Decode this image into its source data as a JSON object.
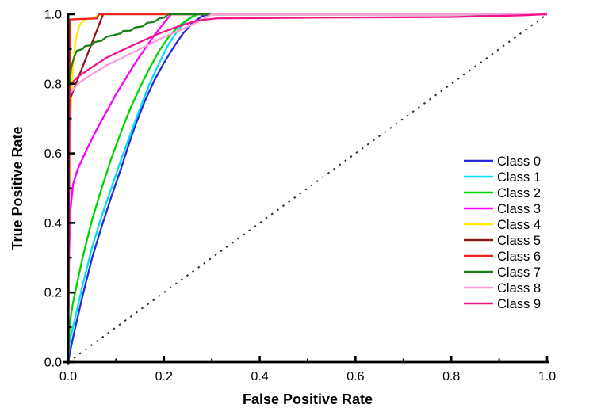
{
  "figure": {
    "background_color": "#ffffff",
    "axis_color": "#000000"
  },
  "chart_data": {
    "type": "line",
    "title": "",
    "xlabel": "False Positive Rate",
    "ylabel": "True Positive Rate",
    "xlim": [
      0.0,
      1.0
    ],
    "ylim": [
      0.0,
      1.0
    ],
    "grid": false,
    "legend_position": "right-middle",
    "x_major_ticks": [
      0.0,
      0.2,
      0.4,
      0.6,
      0.8,
      1.0
    ],
    "y_major_ticks": [
      0.0,
      0.2,
      0.4,
      0.6,
      0.8,
      1.0
    ],
    "x_tick_labels": [
      "0.0",
      "0.2",
      "0.4",
      "0.6",
      "0.8",
      "1.0"
    ],
    "y_tick_labels": [
      "0.0",
      "0.2",
      "0.4",
      "0.6",
      "0.8",
      "1.0"
    ],
    "x_minor_ticks": [
      0.1,
      0.3,
      0.5,
      0.7,
      0.9
    ],
    "y_minor_ticks": [
      0.1,
      0.3,
      0.5,
      0.7,
      0.9
    ],
    "reference_line": {
      "name": "chance-diagonal",
      "style": "dotted",
      "color": "#2e2e2e",
      "points": [
        [
          0.0,
          0.0
        ],
        [
          1.0,
          1.0
        ]
      ]
    },
    "series": [
      {
        "name": "Class 0",
        "color": "#2828d7",
        "points": [
          [
            0,
            0
          ],
          [
            0.004,
            0.03
          ],
          [
            0.01,
            0.07
          ],
          [
            0.03,
            0.19
          ],
          [
            0.05,
            0.3
          ],
          [
            0.07,
            0.39
          ],
          [
            0.09,
            0.475
          ],
          [
            0.11,
            0.555
          ],
          [
            0.13,
            0.64
          ],
          [
            0.14,
            0.68
          ],
          [
            0.16,
            0.75
          ],
          [
            0.18,
            0.81
          ],
          [
            0.2,
            0.86
          ],
          [
            0.22,
            0.905
          ],
          [
            0.24,
            0.945
          ],
          [
            0.26,
            0.975
          ],
          [
            0.28,
            0.995
          ],
          [
            0.295,
            1.0
          ],
          [
            1,
            1
          ]
        ]
      },
      {
        "name": "Class 1",
        "color": "#00e0f0",
        "points": [
          [
            0,
            0
          ],
          [
            0.003,
            0.06
          ],
          [
            0.01,
            0.1
          ],
          [
            0.03,
            0.22
          ],
          [
            0.05,
            0.33
          ],
          [
            0.07,
            0.42
          ],
          [
            0.09,
            0.5
          ],
          [
            0.11,
            0.58
          ],
          [
            0.13,
            0.655
          ],
          [
            0.15,
            0.73
          ],
          [
            0.17,
            0.8
          ],
          [
            0.19,
            0.86
          ],
          [
            0.21,
            0.915
          ],
          [
            0.23,
            0.955
          ],
          [
            0.25,
            0.985
          ],
          [
            0.265,
            1.0
          ],
          [
            1,
            1
          ]
        ]
      },
      {
        "name": "Class 2",
        "color": "#00d500",
        "points": [
          [
            0,
            0
          ],
          [
            0.003,
            0.11
          ],
          [
            0.01,
            0.17
          ],
          [
            0.03,
            0.3
          ],
          [
            0.05,
            0.41
          ],
          [
            0.07,
            0.5
          ],
          [
            0.09,
            0.585
          ],
          [
            0.11,
            0.66
          ],
          [
            0.13,
            0.73
          ],
          [
            0.15,
            0.79
          ],
          [
            0.17,
            0.845
          ],
          [
            0.19,
            0.895
          ],
          [
            0.21,
            0.935
          ],
          [
            0.23,
            0.965
          ],
          [
            0.25,
            0.985
          ],
          [
            0.27,
            1.0
          ],
          [
            1,
            1
          ]
        ]
      },
      {
        "name": "Class 3",
        "color": "#ff00ff",
        "points": [
          [
            0,
            0
          ],
          [
            0.002,
            0.32
          ],
          [
            0.005,
            0.44
          ],
          [
            0.01,
            0.51
          ],
          [
            0.02,
            0.555
          ],
          [
            0.04,
            0.615
          ],
          [
            0.06,
            0.67
          ],
          [
            0.08,
            0.72
          ],
          [
            0.1,
            0.77
          ],
          [
            0.12,
            0.815
          ],
          [
            0.14,
            0.86
          ],
          [
            0.16,
            0.9
          ],
          [
            0.18,
            0.94
          ],
          [
            0.2,
            0.975
          ],
          [
            0.215,
            1.0
          ],
          [
            1,
            1
          ]
        ]
      },
      {
        "name": "Class 4",
        "color": "#ffec00",
        "points": [
          [
            0,
            0
          ],
          [
            0.002,
            0.45
          ],
          [
            0.005,
            0.7
          ],
          [
            0.01,
            0.855
          ],
          [
            0.016,
            0.93
          ],
          [
            0.024,
            0.97
          ],
          [
            0.035,
            0.985
          ],
          [
            0.05,
            0.988
          ],
          [
            0.068,
            1.0
          ],
          [
            1,
            1
          ]
        ]
      },
      {
        "name": "Class 5",
        "color": "#8b1a1a",
        "points": [
          [
            0,
            0
          ],
          [
            0.002,
            0.75
          ],
          [
            0.073,
            1.0
          ],
          [
            1,
            1
          ]
        ]
      },
      {
        "name": "Class 6",
        "color": "#ee2222",
        "points": [
          [
            0,
            0
          ],
          [
            0.004,
            0.985
          ],
          [
            0.06,
            0.988
          ],
          [
            0.064,
            1.0
          ],
          [
            1,
            1
          ]
        ]
      },
      {
        "name": "Class 7",
        "color": "#1e7d1e",
        "points": [
          [
            0,
            0
          ],
          [
            0.002,
            0.78
          ],
          [
            0.006,
            0.845
          ],
          [
            0.012,
            0.875
          ],
          [
            0.018,
            0.895
          ],
          [
            0.03,
            0.9
          ],
          [
            0.035,
            0.908
          ],
          [
            0.05,
            0.912
          ],
          [
            0.055,
            0.92
          ],
          [
            0.07,
            0.924
          ],
          [
            0.08,
            0.935
          ],
          [
            0.095,
            0.94
          ],
          [
            0.11,
            0.945
          ],
          [
            0.115,
            0.952
          ],
          [
            0.13,
            0.953
          ],
          [
            0.14,
            0.962
          ],
          [
            0.155,
            0.965
          ],
          [
            0.165,
            0.975
          ],
          [
            0.18,
            0.978
          ],
          [
            0.19,
            0.988
          ],
          [
            0.2,
            0.99
          ],
          [
            0.21,
            1.0
          ],
          [
            1,
            1
          ]
        ]
      },
      {
        "name": "Class 8",
        "color": "#ff9ae0",
        "points": [
          [
            0,
            0
          ],
          [
            0.003,
            0.77
          ],
          [
            0.02,
            0.8
          ],
          [
            0.05,
            0.828
          ],
          [
            0.08,
            0.853
          ],
          [
            0.11,
            0.873
          ],
          [
            0.15,
            0.9
          ],
          [
            0.19,
            0.928
          ],
          [
            0.23,
            0.952
          ],
          [
            0.27,
            0.977
          ],
          [
            0.3,
            1.0
          ],
          [
            1,
            1
          ]
        ]
      },
      {
        "name": "Class 9",
        "color": "#f0148c",
        "points": [
          [
            0,
            0
          ],
          [
            0.003,
            0.795
          ],
          [
            0.02,
            0.82
          ],
          [
            0.05,
            0.848
          ],
          [
            0.08,
            0.875
          ],
          [
            0.11,
            0.895
          ],
          [
            0.15,
            0.92
          ],
          [
            0.19,
            0.945
          ],
          [
            0.23,
            0.965
          ],
          [
            0.27,
            0.982
          ],
          [
            0.31,
            0.988
          ],
          [
            0.5,
            0.99
          ],
          [
            0.8,
            0.992
          ],
          [
            0.95,
            0.997
          ],
          [
            1,
            1
          ]
        ]
      }
    ]
  }
}
